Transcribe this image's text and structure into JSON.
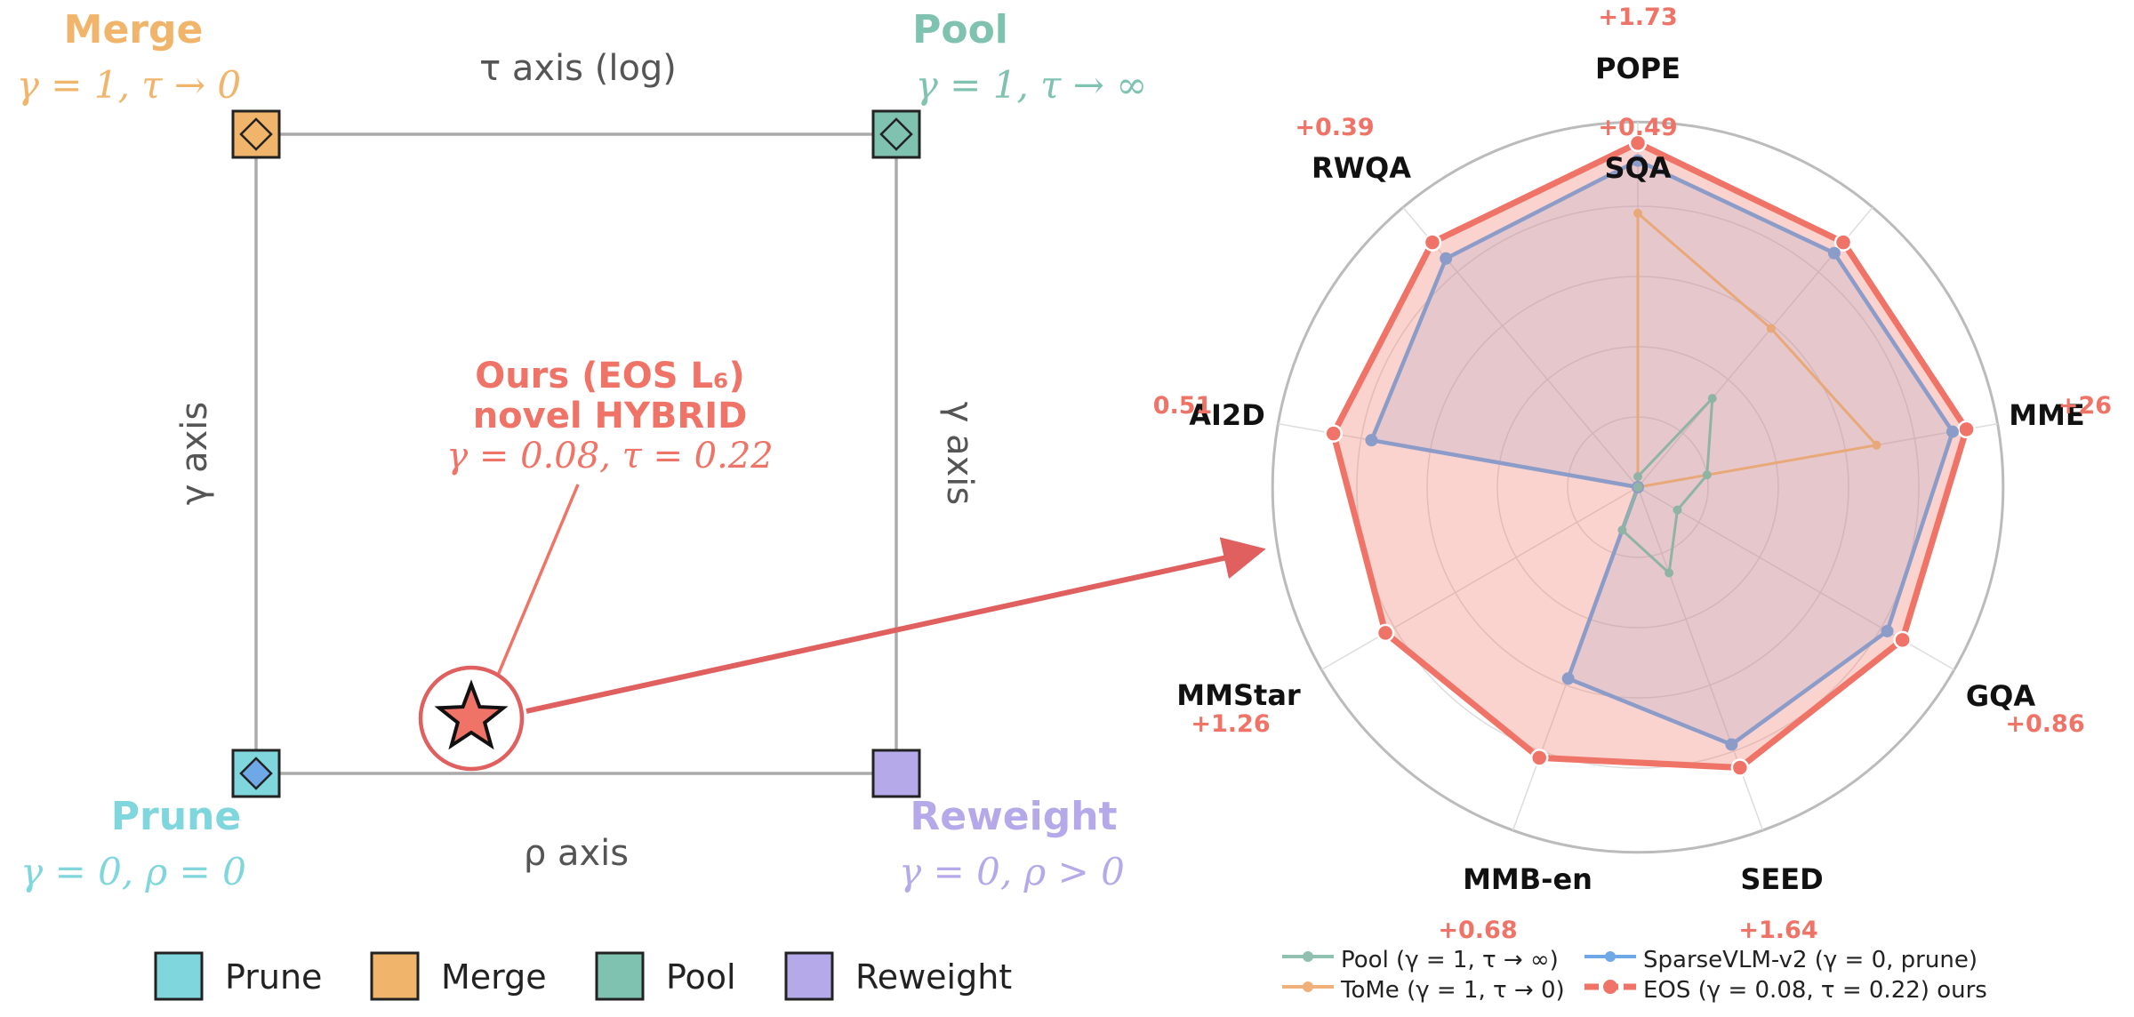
{
  "colors": {
    "prune": "#7fd6dc",
    "merge": "#f0b46a",
    "pool": "#7fc2b0",
    "reweight": "#b6a9ea",
    "ours": "#ef7366",
    "sparse": "#8b9cc8",
    "gray": "#aaaaaa",
    "text_gray": "#555555"
  },
  "design_space": {
    "corners": {
      "merge": {
        "title": "Merge",
        "params": "γ = 1,  τ → 0"
      },
      "pool": {
        "title": "Pool",
        "params": "γ = 1,  τ → ∞"
      },
      "prune": {
        "title": "Prune",
        "params": "γ = 0,  ρ = 0"
      },
      "reweight": {
        "title": "Reweight",
        "params": "γ = 0,  ρ > 0"
      }
    },
    "axes": {
      "top": "τ axis (log)",
      "bottom": "ρ axis",
      "left": "γ axis",
      "right": "γ axis"
    },
    "ours": {
      "line1": "Ours (EOS L₆)",
      "line2": "novel HYBRID",
      "line3": "γ = 0.08, τ = 0.22"
    },
    "legend": [
      "Prune",
      "Merge",
      "Pool",
      "Reweight"
    ]
  },
  "chart_data": {
    "type": "radar",
    "categories": [
      "POPE",
      "SQA",
      "MME",
      "GQA",
      "SEED",
      "MMB-en",
      "MMStar",
      "AI2D",
      "RWQA"
    ],
    "rmax": 1.0,
    "grid_levels": [
      0.2,
      0.4,
      0.6,
      0.8
    ],
    "series": [
      {
        "name": "Pool (γ = 1, τ → ∞)",
        "values": [
          0.03,
          0.33,
          0.2,
          0.13,
          0.26,
          0.13,
          0.0,
          0.0,
          0.0
        ]
      },
      {
        "name": "ToMe (γ = 1, τ → 0)",
        "values": [
          0.78,
          0.59,
          0.69,
          0.0,
          0.0,
          0.0,
          0.0,
          0.0,
          0.0
        ]
      },
      {
        "name": "SparseVLM-v2 (γ = 0, prune)",
        "values": [
          0.93,
          0.87,
          0.91,
          0.82,
          0.78,
          0.58,
          0.0,
          0.77,
          0.85
        ]
      },
      {
        "name": "EOS (γ = 0.08, τ = 0.22)  ours",
        "values": [
          0.98,
          0.91,
          0.95,
          0.87,
          0.85,
          0.82,
          0.83,
          0.88,
          0.91
        ]
      }
    ],
    "deltas": [
      "+1.73",
      "+0.49",
      "+26",
      "+0.86",
      "+1.64",
      "+0.68",
      "+1.26",
      "0.51",
      "+0.39"
    ]
  }
}
